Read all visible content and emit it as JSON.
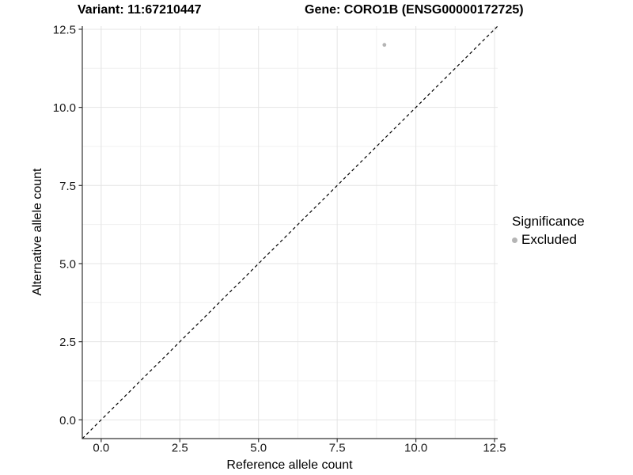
{
  "background_color": "#ffffff",
  "chart_data": {
    "type": "scatter",
    "title_variant": "Variant: 11:67210447",
    "title_gene": "Gene: CORO1B (ENSG00000172725)",
    "xlabel": "Reference allele count",
    "ylabel": "Alternative allele count",
    "xlim": [
      -0.6,
      12.6
    ],
    "ylim": [
      -0.6,
      12.6
    ],
    "xticks": {
      "values": [
        0,
        2.5,
        5,
        7.5,
        10,
        12.5
      ],
      "labels": [
        "0.0",
        "2.5",
        "5.0",
        "7.5",
        "10.0",
        "12.5"
      ]
    },
    "yticks": {
      "values": [
        0,
        2.5,
        5,
        7.5,
        10,
        12.5
      ],
      "labels": [
        "0.0",
        "2.5",
        "5.0",
        "7.5",
        "10.0",
        "12.5"
      ]
    },
    "minor_ticks": [
      1.25,
      3.75,
      6.25,
      8.75,
      11.25
    ],
    "grid": {
      "show": true,
      "major_color": "#e4e4e4",
      "minor_color": "#f0f0f0"
    },
    "identity_line": {
      "style": "dashed",
      "color": "#000000",
      "from": -0.6,
      "to": 12.6
    },
    "axis_color": "#333333",
    "tick_label_color": "#1a1a1a",
    "series": [
      {
        "name": "Excluded",
        "color": "#b5b5b5",
        "points": [
          {
            "x": 9,
            "y": 12
          }
        ]
      }
    ],
    "legend": {
      "title": "Significance",
      "position": "right",
      "entries": [
        {
          "label": "Excluded",
          "color": "#b5b5b5"
        }
      ]
    }
  }
}
